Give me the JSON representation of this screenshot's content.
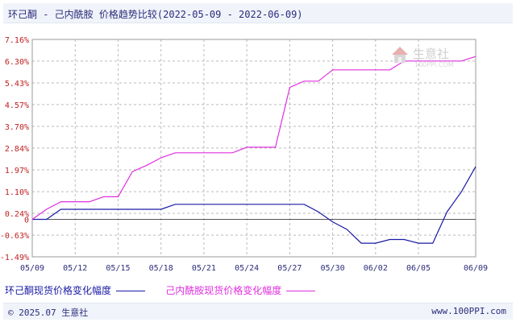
{
  "title": "环己酮 - 己内酰胺 价格趋势比较(2022-05-09 - 2022-06-09)",
  "footer": {
    "copyright": "© 2025.07 生意社",
    "site": "www.100PPI.com"
  },
  "watermark": {
    "brand": "生意社",
    "url": "100PPI.COM"
  },
  "colors": {
    "series1": "#1a1aa6",
    "series2": "#e030e0",
    "ytick": "#c02020",
    "xtick": "#2b2b7a",
    "grid": "#bbbbbb"
  },
  "chart_data": {
    "type": "line",
    "title": "环己酮 - 己内酰胺 价格趋势比较(2022-05-09 - 2022-06-09)",
    "ylim": [
      -1.49,
      7.16
    ],
    "y_ticks": [
      "7.16%",
      "6.30%",
      "5.43%",
      "4.57%",
      "3.70%",
      "2.84%",
      "1.97%",
      "1.10%",
      "0.24%",
      "-0.63%",
      "-1.49%"
    ],
    "y_tick_values": [
      7.16,
      6.3,
      5.43,
      4.57,
      3.7,
      2.84,
      1.97,
      1.1,
      0.24,
      -0.63,
      -1.49
    ],
    "zero_label": "0",
    "x_ticks": [
      "05/09",
      "05/12",
      "05/15",
      "05/18",
      "05/21",
      "05/24",
      "05/27",
      "05/30",
      "06/02",
      "06/05",
      "06/09"
    ],
    "x_tick_days": [
      0,
      3,
      6,
      9,
      12,
      15,
      18,
      21,
      24,
      27,
      31
    ],
    "grid": true,
    "legend_position": "bottom",
    "series": [
      {
        "name": "环己酮现货价格变化幅度",
        "color": "#1a1aa6",
        "points": [
          [
            0,
            0
          ],
          [
            1,
            0
          ],
          [
            2,
            0.4
          ],
          [
            9,
            0.4
          ],
          [
            10,
            0.6
          ],
          [
            19,
            0.6
          ],
          [
            20,
            0.3
          ],
          [
            21,
            -0.1
          ],
          [
            22,
            -0.4
          ],
          [
            23,
            -0.95
          ],
          [
            24,
            -0.95
          ],
          [
            25,
            -0.8
          ],
          [
            26,
            -0.8
          ],
          [
            27,
            -0.95
          ],
          [
            28,
            -0.95
          ],
          [
            29,
            0.3
          ],
          [
            30,
            1.1
          ],
          [
            31,
            2.1
          ]
        ]
      },
      {
        "name": "己内酰胺现货价格变化幅度",
        "color": "#e030e0",
        "points": [
          [
            0,
            0
          ],
          [
            1,
            0.4
          ],
          [
            2,
            0.7
          ],
          [
            4,
            0.7
          ],
          [
            5,
            0.9
          ],
          [
            6,
            0.9
          ],
          [
            7,
            1.9
          ],
          [
            8,
            2.15
          ],
          [
            9,
            2.45
          ],
          [
            10,
            2.65
          ],
          [
            14,
            2.65
          ],
          [
            15,
            2.87
          ],
          [
            17,
            2.87
          ],
          [
            18,
            5.25
          ],
          [
            19,
            5.5
          ],
          [
            20,
            5.5
          ],
          [
            21,
            5.95
          ],
          [
            25,
            5.95
          ],
          [
            26,
            6.3
          ],
          [
            30,
            6.3
          ],
          [
            31,
            6.48
          ]
        ]
      }
    ]
  }
}
